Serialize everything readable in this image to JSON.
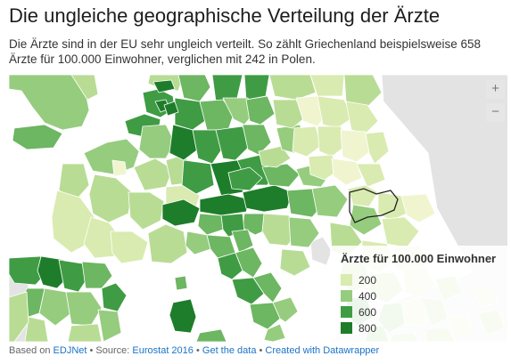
{
  "title": "Die ungleiche geographische Verteilung der Ärzte",
  "intro": "Die Ärzte sind in der EU sehr ungleich verteilt. So zählt Griechenland beispielsweise 658 Ärzte für 100.000 Einwohner, verglichen mit 242 in Polen.",
  "zoom": {
    "in_label": "+",
    "out_label": "−"
  },
  "legend": {
    "title": "Ärzte für 100.000 Einwohner",
    "items": [
      {
        "label": "200",
        "color": "#d9ebb0"
      },
      {
        "label": "400",
        "color": "#96cc7e"
      },
      {
        "label": "600",
        "color": "#3f9c44"
      },
      {
        "label": "800",
        "color": "#1e7d2a"
      }
    ]
  },
  "map": {
    "colors": {
      "non_eu": "#e3e3e3",
      "border": "#ffffff",
      "highlight_outline": "#222222",
      "scale": [
        "#f0f5d0",
        "#d9ebb0",
        "#b9dc95",
        "#96cc7e",
        "#6db662",
        "#3f9c44",
        "#1e7d2a"
      ]
    }
  },
  "footer": {
    "prefix": "Based on",
    "edjnet": "EDJNet",
    "source_prefix": "• Source:",
    "source": "Eurostat 2016",
    "sep1": "•",
    "get_data": "Get the data",
    "sep2": "•",
    "created": "Created with Datawrapper"
  }
}
